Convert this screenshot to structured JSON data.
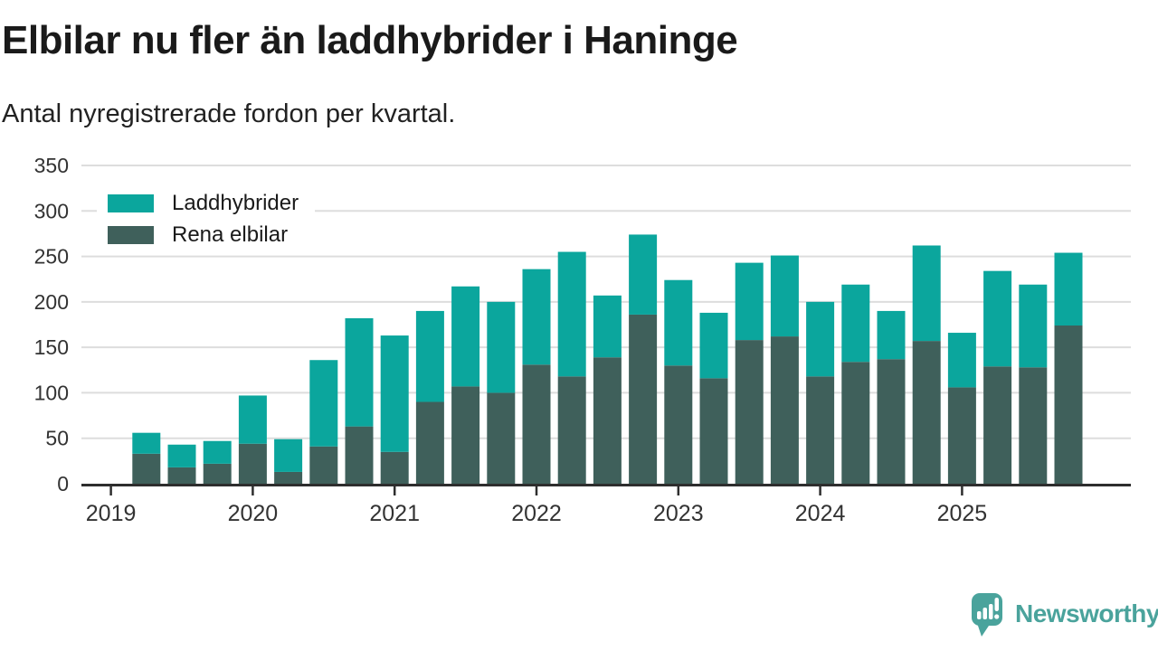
{
  "header": {
    "title": "Elbilar nu fler än laddhybrider i Haninge",
    "subtitle": "Antal nyregistrerade fordon per kvartal."
  },
  "legend": {
    "items": [
      {
        "label": "Laddhybrider",
        "color": "#0ba69d"
      },
      {
        "label": "Rena elbilar",
        "color": "#3f605b"
      }
    ]
  },
  "footer": {
    "brand": "Newsworthy",
    "brand_color": "#4aa39c"
  },
  "colors": {
    "laddhybrider": "#0ba69d",
    "rena_elbilar": "#3f605b",
    "gridline": "#dddddd",
    "axis_line": "#2e2e2e",
    "tick_label": "#333333",
    "title_text": "#1a1a1a"
  },
  "chart_data": {
    "type": "bar",
    "stacked": true,
    "title": "Elbilar nu fler än laddhybrider i Haninge",
    "subtitle": "Antal nyregistrerade fordon per kvartal.",
    "xlabel": "",
    "ylabel": "",
    "ylim": [
      0,
      350
    ],
    "yticks": [
      0,
      50,
      100,
      150,
      200,
      250,
      300,
      350
    ],
    "grid": true,
    "legend_position": "top-left",
    "year_ticks": [
      "2019",
      "2020",
      "2021",
      "2022",
      "2023",
      "2024",
      "2025"
    ],
    "categories": [
      "2019 Q1",
      "2019 Q2",
      "2019 Q3",
      "2019 Q4",
      "2020 Q1",
      "2020 Q2",
      "2020 Q3",
      "2020 Q4",
      "2021 Q1",
      "2021 Q2",
      "2021 Q3",
      "2021 Q4",
      "2022 Q1",
      "2022 Q2",
      "2022 Q3",
      "2022 Q4",
      "2023 Q1",
      "2023 Q2",
      "2023 Q3",
      "2023 Q4",
      "2024 Q1",
      "2024 Q2",
      "2024 Q3",
      "2024 Q4",
      "2025 Q1",
      "2025 Q2",
      "2025 Q3",
      "2025 Q4"
    ],
    "series": [
      {
        "name": "Rena elbilar",
        "color": "#3f605b",
        "stack_order": "bottom",
        "values": [
          null,
          33,
          18,
          22,
          44,
          13,
          41,
          63,
          35,
          90,
          107,
          100,
          131,
          118,
          139,
          186,
          130,
          116,
          158,
          162,
          118,
          134,
          137,
          157,
          106,
          129,
          128,
          174
        ]
      },
      {
        "name": "Laddhybrider",
        "color": "#0ba69d",
        "stack_order": "top",
        "values": [
          null,
          23,
          25,
          25,
          53,
          36,
          95,
          119,
          128,
          100,
          110,
          100,
          105,
          137,
          68,
          88,
          94,
          72,
          85,
          89,
          82,
          85,
          53,
          105,
          60,
          105,
          91,
          80
        ]
      }
    ]
  }
}
